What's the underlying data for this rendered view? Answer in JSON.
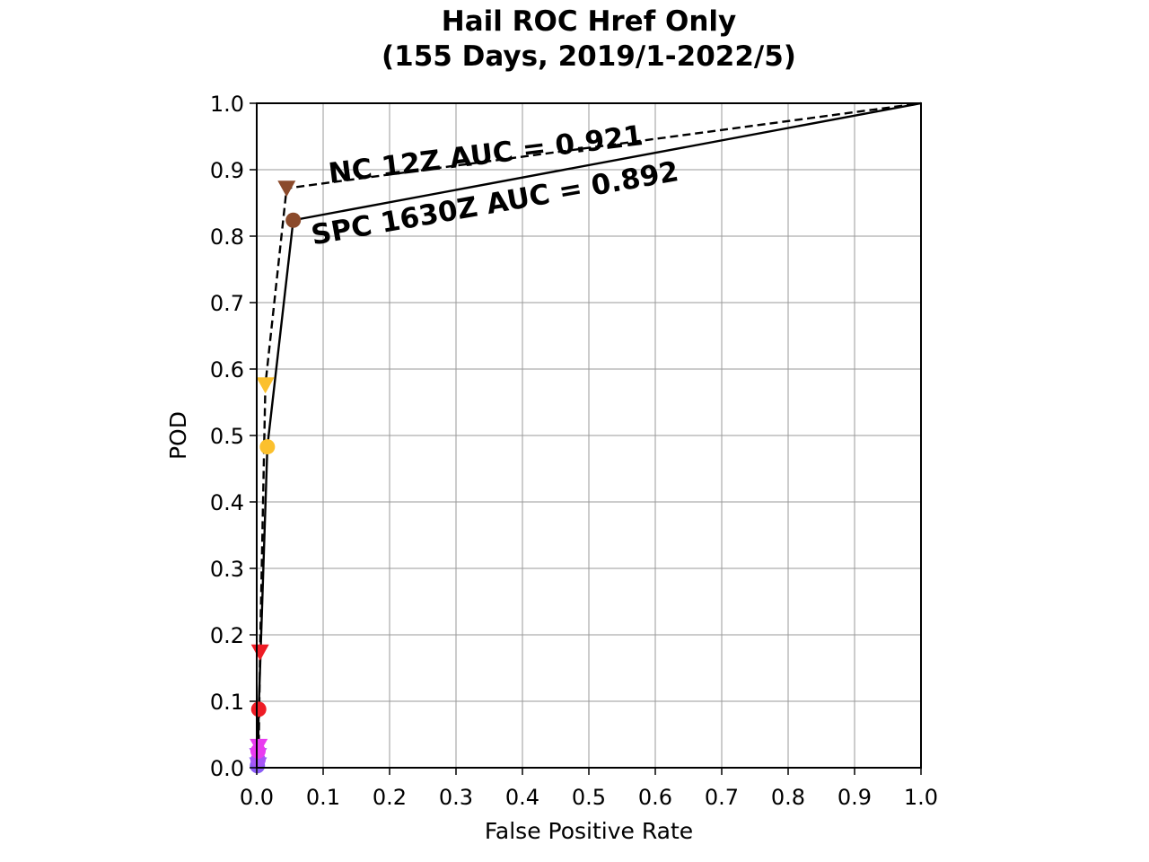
{
  "chart_data": {
    "type": "line",
    "title_line1": "Hail ROC Href Only",
    "title_line2": "(155 Days, 2019/1-2022/5)",
    "xlabel": "False Positive Rate",
    "ylabel": "POD",
    "xlim": [
      0.0,
      1.0
    ],
    "ylim": [
      0.0,
      1.0
    ],
    "xticks": [
      "0.0",
      "0.1",
      "0.2",
      "0.3",
      "0.4",
      "0.5",
      "0.6",
      "0.7",
      "0.8",
      "0.9",
      "1.0"
    ],
    "yticks": [
      "0.0",
      "0.1",
      "0.2",
      "0.3",
      "0.4",
      "0.5",
      "0.6",
      "0.7",
      "0.8",
      "0.9",
      "1.0"
    ],
    "grid": true,
    "series": [
      {
        "line_style": "dashed",
        "marker": "triangle-down",
        "points": [
          {
            "x": 0.0,
            "y": 0.0,
            "color": "#000000",
            "marker": false
          },
          {
            "x": 0.002,
            "y": 0.004,
            "color": "#8b5cf6",
            "marker": true
          },
          {
            "x": 0.002,
            "y": 0.018,
            "color": "#a855f7",
            "marker": true
          },
          {
            "x": 0.003,
            "y": 0.032,
            "color": "#e93cf0",
            "marker": true
          },
          {
            "x": 0.005,
            "y": 0.174,
            "color": "#ee1c25",
            "marker": true
          },
          {
            "x": 0.013,
            "y": 0.576,
            "color": "#fbc02d",
            "marker": true
          },
          {
            "x": 0.045,
            "y": 0.872,
            "color": "#8b4a2b",
            "marker": true
          },
          {
            "x": 1.0,
            "y": 1.0,
            "color": "#000000",
            "marker": false
          }
        ]
      },
      {
        "line_style": "solid",
        "marker": "circle",
        "points": [
          {
            "x": 0.0,
            "y": 0.0,
            "color": "#000000",
            "marker": false
          },
          {
            "x": 0.001,
            "y": 0.003,
            "color": "#8b5cf6",
            "marker": true
          },
          {
            "x": 0.002,
            "y": 0.012,
            "color": "#a855f7",
            "marker": true
          },
          {
            "x": 0.002,
            "y": 0.025,
            "color": "#e93cf0",
            "marker": true
          },
          {
            "x": 0.003,
            "y": 0.088,
            "color": "#ee1c25",
            "marker": true
          },
          {
            "x": 0.016,
            "y": 0.483,
            "color": "#fbc02d",
            "marker": true
          },
          {
            "x": 0.055,
            "y": 0.824,
            "color": "#8b4a2b",
            "marker": true
          },
          {
            "x": 1.0,
            "y": 1.0,
            "color": "#000000",
            "marker": false
          }
        ]
      }
    ],
    "annotations": [
      {
        "text": "NC 12Z AUC = 0.921",
        "x": 0.11,
        "y": 0.88,
        "rotation": -7
      },
      {
        "text": "SPC 1630Z AUC = 0.892",
        "x": 0.085,
        "y": 0.787,
        "rotation": -10
      }
    ]
  }
}
